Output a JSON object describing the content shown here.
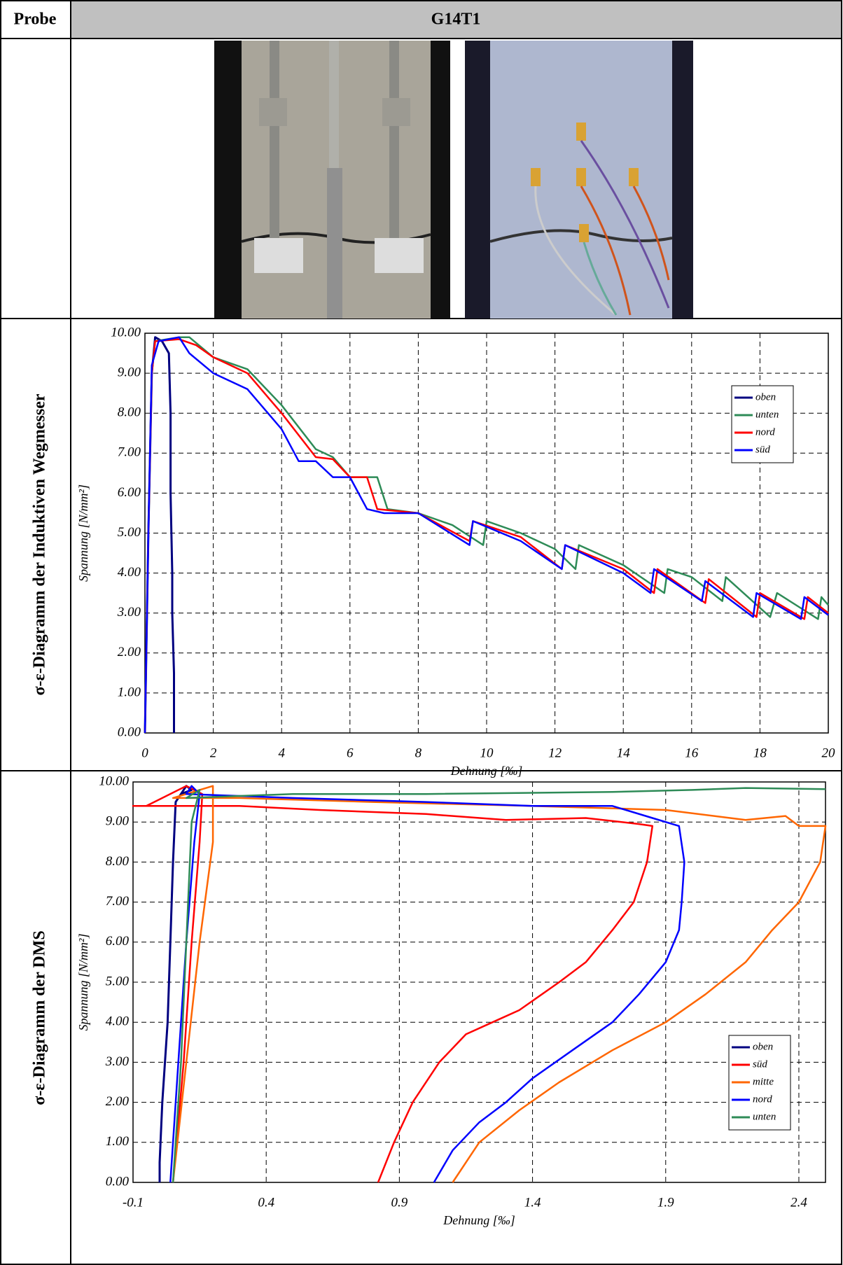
{
  "table": {
    "header": {
      "label": "Probe",
      "sample": "G14T1"
    },
    "rows": [
      "σ-ε-Diagramm der Induktiven Wegmesser",
      "σ-ε-Diagramm der DMS"
    ]
  },
  "chart_data": [
    {
      "type": "line",
      "xlabel": "Dehnung [‰]",
      "ylabel": "Spannung [N/mm²]",
      "xlim": [
        0,
        20
      ],
      "ylim": [
        0,
        10
      ],
      "xticks": [
        0,
        2,
        4,
        6,
        8,
        10,
        12,
        14,
        16,
        18,
        20
      ],
      "yticks": [
        {
          "value": 0,
          "label": "0.00"
        },
        {
          "value": 1,
          "label": "1.00"
        },
        {
          "value": 2,
          "label": "2.00"
        },
        {
          "value": 3,
          "label": "3.00"
        },
        {
          "value": 4,
          "label": "4.00"
        },
        {
          "value": 5,
          "label": "5.00"
        },
        {
          "value": 6,
          "label": "6.00"
        },
        {
          "value": 7,
          "label": "7.00"
        },
        {
          "value": 8,
          "label": "8.00"
        },
        {
          "value": 9,
          "label": "9.00"
        },
        {
          "value": 10,
          "label": "10.00"
        }
      ],
      "grid": true,
      "legend": "upper right",
      "series": [
        {
          "name": "oben",
          "color": "#000080",
          "x": [
            0,
            0.1,
            0.2,
            0.3,
            0.5,
            0.7,
            0.75,
            0.75,
            0.8,
            0.8,
            0.85,
            0.85
          ],
          "values": [
            0,
            5,
            9,
            9.9,
            9.8,
            9.5,
            8,
            6,
            4,
            3,
            1.5,
            0
          ]
        },
        {
          "name": "unten",
          "color": "#2e8b57",
          "x": [
            0,
            0.1,
            0.2,
            0.3,
            1,
            1.3,
            2,
            3,
            4,
            5,
            5.5,
            6,
            6.8,
            7.1,
            8,
            9,
            9.9,
            10,
            11,
            12,
            12.6,
            12.7,
            14,
            15.2,
            15.3,
            16,
            16.9,
            17,
            18.3,
            18.5,
            19.7,
            19.8,
            20
          ],
          "values": [
            0,
            5,
            9,
            9.8,
            9.9,
            9.9,
            9.4,
            9.1,
            8.2,
            7.1,
            6.9,
            6.4,
            6.4,
            5.6,
            5.5,
            5.2,
            4.7,
            5.3,
            5,
            4.6,
            4.1,
            4.7,
            4.2,
            3.5,
            4.1,
            3.9,
            3.3,
            3.9,
            2.9,
            3.5,
            2.85,
            3.4,
            3.2
          ]
        },
        {
          "name": "nord",
          "color": "#ff0000",
          "x": [
            0,
            0.1,
            0.2,
            0.3,
            1,
            1.5,
            2,
            3,
            4,
            5,
            5.5,
            6,
            6.5,
            6.8,
            8,
            9.5,
            9.6,
            11,
            12.2,
            12.3,
            14,
            14.9,
            15,
            16.4,
            16.5,
            17.9,
            18,
            19.3,
            19.4,
            20
          ],
          "values": [
            0,
            5,
            9,
            9.8,
            9.85,
            9.7,
            9.4,
            9,
            8,
            6.9,
            6.85,
            6.4,
            6.4,
            5.6,
            5.5,
            4.8,
            5.3,
            4.9,
            4.1,
            4.7,
            4.1,
            3.5,
            4.1,
            3.25,
            3.85,
            2.9,
            3.5,
            2.85,
            3.4,
            3
          ]
        },
        {
          "name": "süd",
          "color": "#0000ff",
          "x": [
            0,
            0.1,
            0.2,
            0.4,
            1,
            1.3,
            2,
            3,
            4,
            4.5,
            5,
            5.5,
            6,
            6.5,
            7,
            8,
            9.5,
            9.6,
            11,
            12.2,
            12.3,
            14,
            14.8,
            14.9,
            16.3,
            16.4,
            17.8,
            17.9,
            19.2,
            19.3,
            20
          ],
          "values": [
            0,
            5,
            9.2,
            9.8,
            9.9,
            9.5,
            9,
            8.6,
            7.6,
            6.8,
            6.8,
            6.4,
            6.4,
            5.6,
            5.5,
            5.5,
            4.7,
            5.3,
            4.8,
            4.1,
            4.7,
            4,
            3.5,
            4.1,
            3.3,
            3.8,
            2.9,
            3.5,
            2.85,
            3.4,
            2.95
          ]
        }
      ]
    },
    {
      "type": "line",
      "xlabel": "Dehnung [‰]",
      "ylabel": "Spannung [N/mm²]",
      "xlim": [
        -0.1,
        2.5
      ],
      "ylim": [
        0,
        10
      ],
      "xticks": [
        -0.1,
        0.4,
        0.9,
        1.4,
        1.9,
        2.4
      ],
      "yticks": [
        {
          "value": 0,
          "label": "0.00"
        },
        {
          "value": 1,
          "label": "1.00"
        },
        {
          "value": 2,
          "label": "2.00"
        },
        {
          "value": 3,
          "label": "3.00"
        },
        {
          "value": 4,
          "label": "4.00"
        },
        {
          "value": 5,
          "label": "5.00"
        },
        {
          "value": 6,
          "label": "6.00"
        },
        {
          "value": 7,
          "label": "7.00"
        },
        {
          "value": 8,
          "label": "8.00"
        },
        {
          "value": 9,
          "label": "9.00"
        },
        {
          "value": 10,
          "label": "10.00"
        }
      ],
      "grid": true,
      "legend": "lower right",
      "series": [
        {
          "name": "oben",
          "color": "#000080",
          "x": [
            0,
            0,
            0.01,
            0.03,
            0.04,
            0.05,
            0.06,
            0.1,
            0.12,
            0.08
          ],
          "values": [
            0,
            0.5,
            2,
            4,
            6,
            8,
            9.5,
            9.9,
            9.8,
            9.7
          ]
        },
        {
          "name": "süd",
          "color": "#ff0000",
          "x": [
            0.05,
            0.09,
            0.12,
            0.15,
            0.16,
            0.1,
            -0.05,
            -0.1,
            0.3,
            0.6,
            1,
            1.3,
            1.6,
            1.8,
            1.85,
            1.83,
            1.78,
            1.7,
            1.6,
            1.5,
            1.35,
            1.25,
            1.15,
            1.05,
            0.95,
            0.88,
            0.82
          ],
          "values": [
            0,
            3,
            6,
            8.5,
            9.7,
            9.9,
            9.4,
            9.4,
            9.4,
            9.3,
            9.2,
            9.05,
            9.1,
            8.95,
            8.9,
            8,
            7,
            6.3,
            5.5,
            5,
            4.3,
            4,
            3.7,
            3,
            2,
            1,
            0
          ]
        },
        {
          "name": "mitte",
          "color": "#ff6600",
          "x": [
            0.05,
            0.1,
            0.15,
            0.2,
            0.2,
            0.05,
            0.3,
            0.8,
            1.4,
            1.9,
            2.2,
            2.35,
            2.4,
            2.5,
            2.48,
            2.4,
            2.3,
            2.2,
            2.05,
            1.9,
            1.7,
            1.5,
            1.35,
            1.2,
            1.1
          ],
          "values": [
            0,
            3,
            6,
            8.5,
            9.9,
            9.6,
            9.6,
            9.5,
            9.4,
            9.3,
            9.05,
            9.15,
            8.9,
            8.9,
            8,
            7,
            6.3,
            5.5,
            4.7,
            4,
            3.3,
            2.5,
            1.8,
            1,
            0
          ]
        },
        {
          "name": "nord",
          "color": "#0000ff",
          "x": [
            0.04,
            0.07,
            0.1,
            0.13,
            0.15,
            0.12,
            0.1,
            0.5,
            1,
            1.4,
            1.7,
            1.85,
            1.95,
            1.97,
            1.96,
            1.95,
            1.9,
            1.8,
            1.7,
            1.55,
            1.4,
            1.3,
            1.2,
            1.1,
            1.03
          ],
          "values": [
            0,
            3,
            6,
            8.5,
            9.7,
            9.9,
            9.7,
            9.6,
            9.5,
            9.4,
            9.4,
            9.1,
            8.9,
            8,
            7,
            6.3,
            5.5,
            4.7,
            4,
            3.3,
            2.6,
            2,
            1.5,
            0.8,
            0
          ]
        },
        {
          "name": "unten",
          "color": "#2e8b57",
          "x": [
            0.05,
            0.08,
            0.1,
            0.12,
            0.15,
            0.1,
            0.5,
            1,
            1.7,
            2,
            2.2,
            2.5
          ],
          "values": [
            0,
            3,
            6,
            9,
            9.8,
            9.6,
            9.7,
            9.7,
            9.75,
            9.8,
            9.85,
            9.82
          ]
        }
      ]
    }
  ]
}
